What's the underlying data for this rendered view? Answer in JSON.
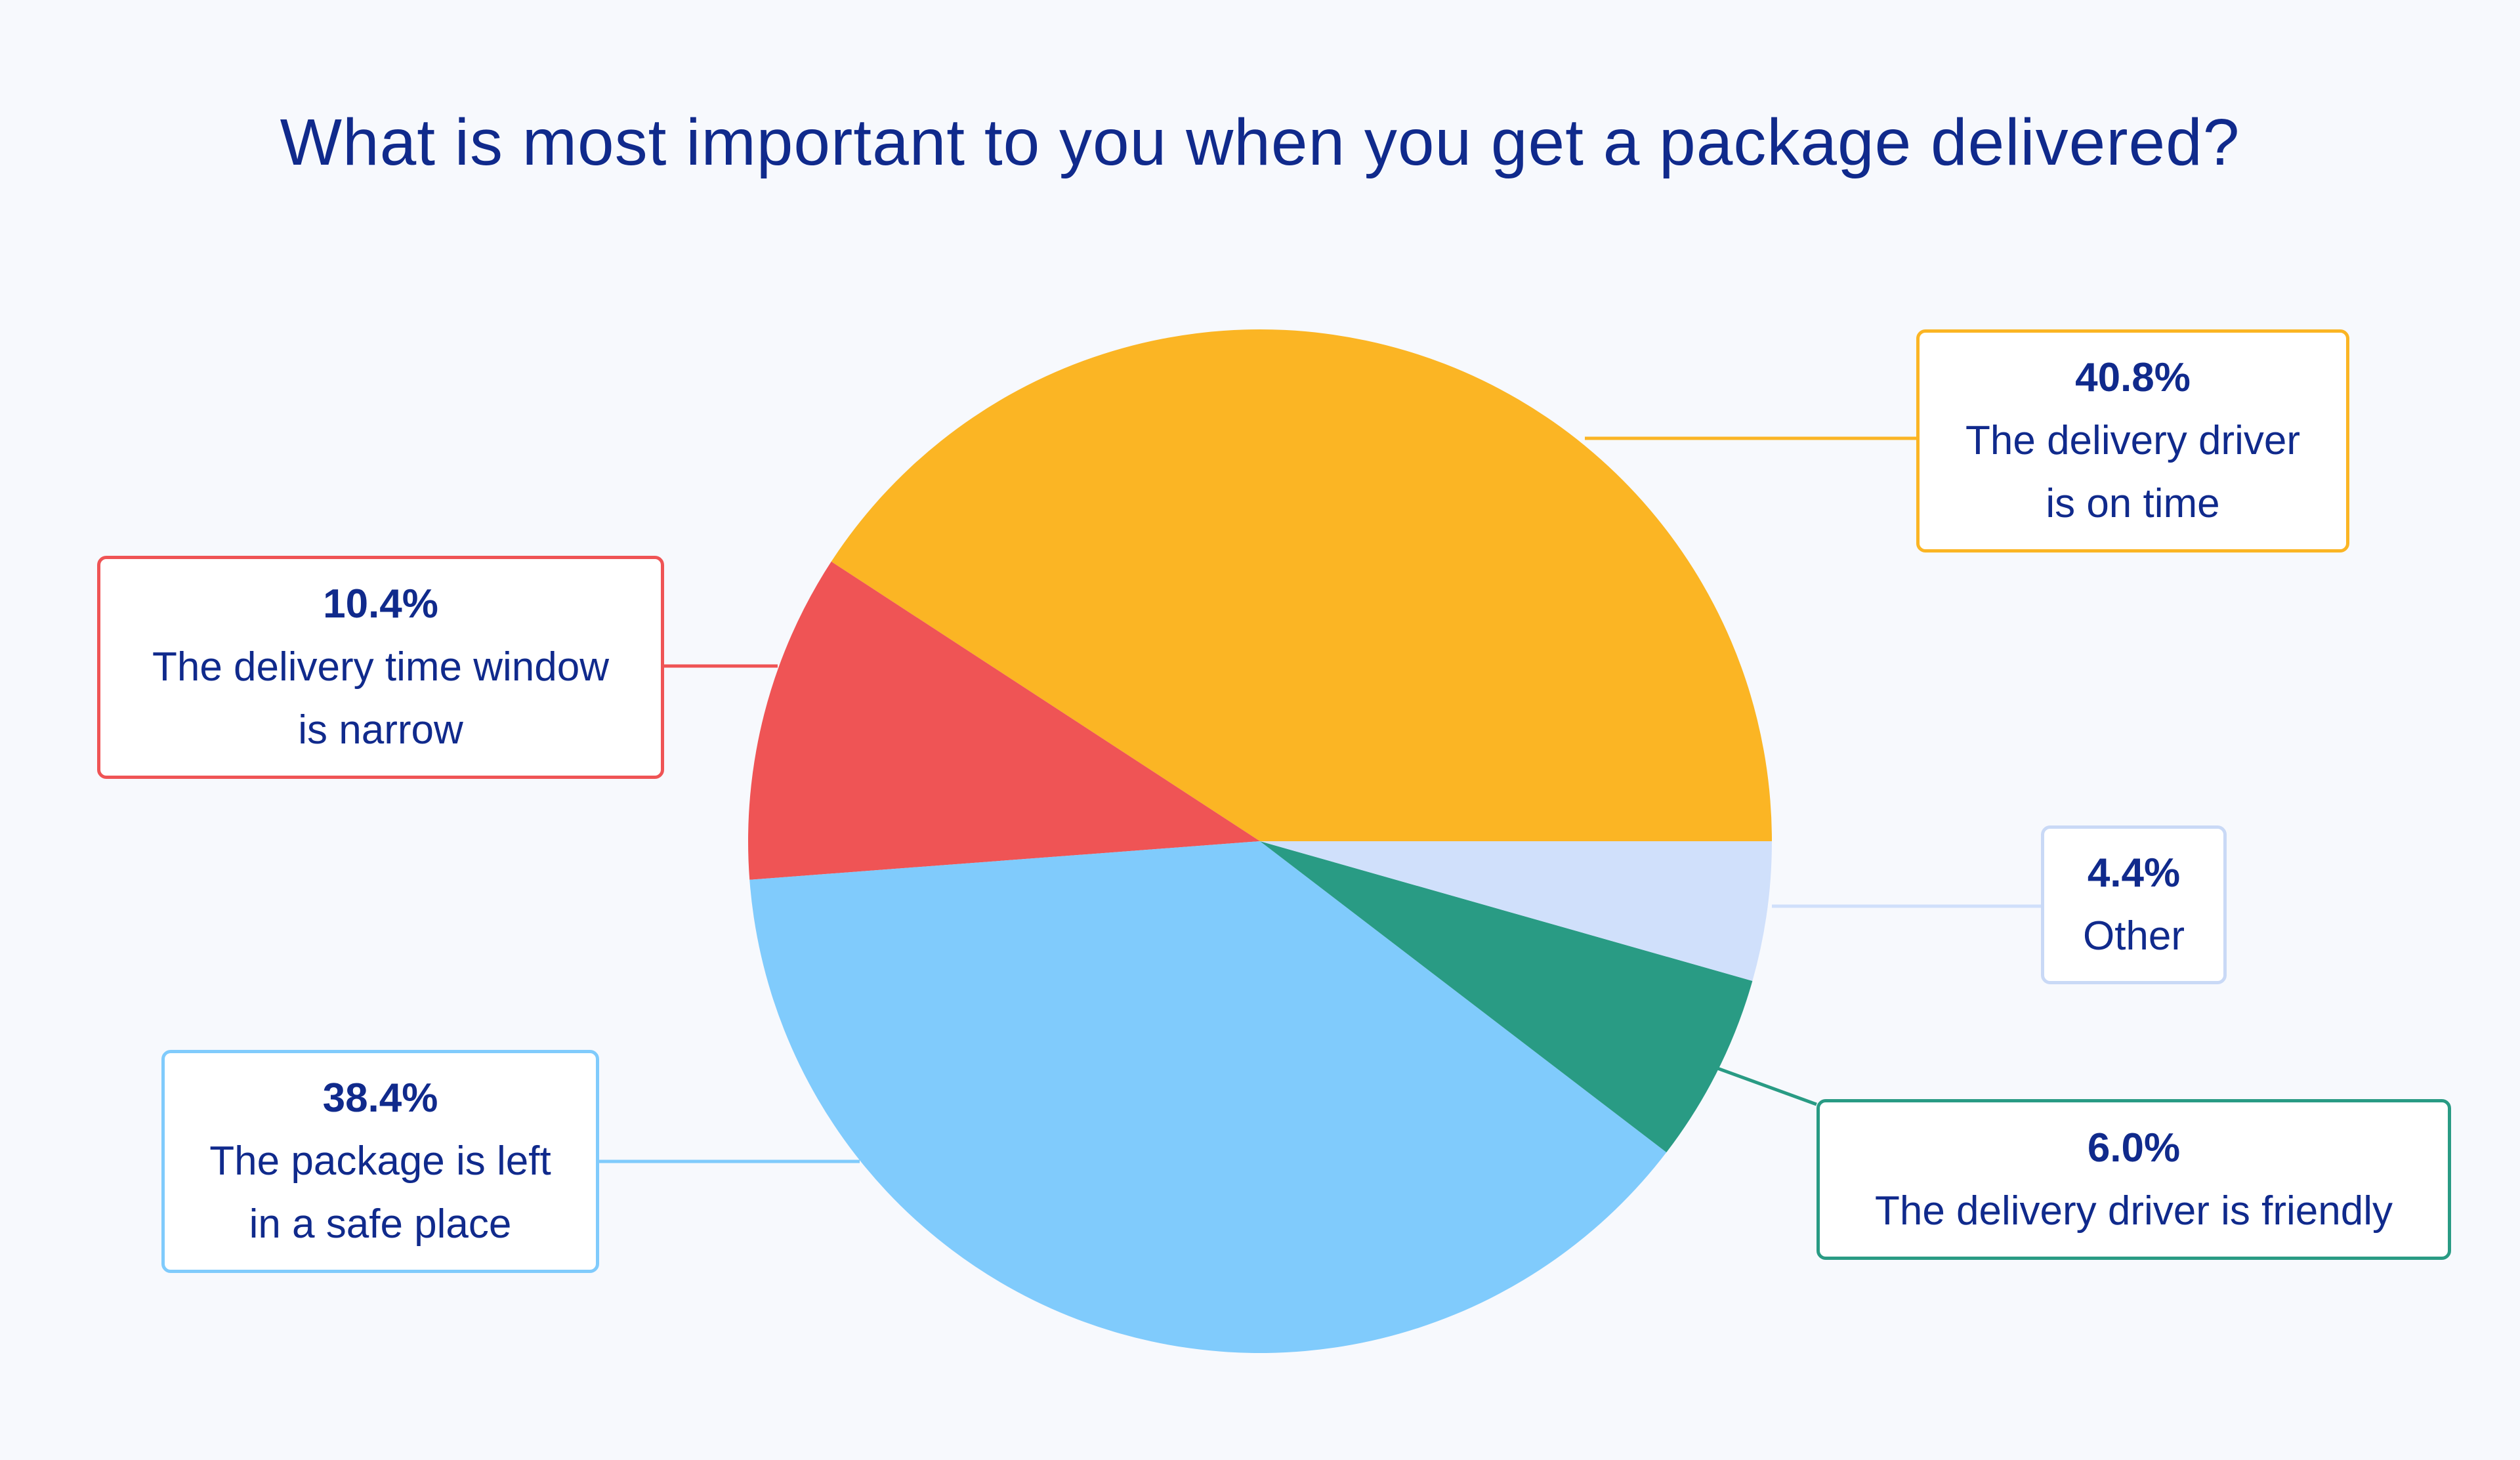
{
  "chart_data": {
    "type": "pie",
    "title": "What is most important to you when you get a package delivered?",
    "slices": [
      {
        "label": "The delivery driver is on time",
        "value": 40.8,
        "value_label": "40.8%",
        "color": "#fbb524"
      },
      {
        "label": "The delivery time window is narrow",
        "value": 10.4,
        "value_label": "10.4%",
        "color": "#ef5455"
      },
      {
        "label": "The package is left in a safe place",
        "value": 38.4,
        "value_label": "38.4%",
        "color": "#80cbfc"
      },
      {
        "label": "The delivery driver is friendly",
        "value": 6.0,
        "value_label": "6.0%",
        "color": "#299b84"
      },
      {
        "label": "Other",
        "value": 4.4,
        "value_label": "4.4%",
        "color": "#d0e0fb"
      }
    ],
    "start_angle": "right, counter-clockwise",
    "legend": "callouts"
  },
  "colors": {
    "background": "#f7f9fd",
    "title": "#102a8c",
    "text": "#102a8c"
  }
}
